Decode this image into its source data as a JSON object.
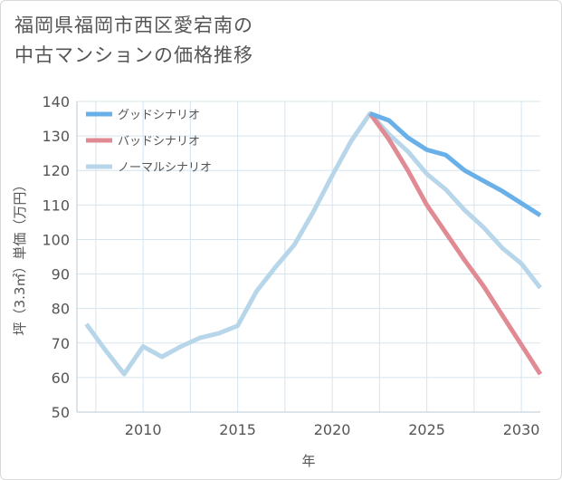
{
  "title_lines": [
    "福岡県福岡市西区愛宕南の",
    "中古マンションの価格推移"
  ],
  "chart_data": {
    "type": "line",
    "title": "福岡県福岡市西区愛宕南の中古マンションの価格推移",
    "xlabel": "年",
    "ylabel": "坪（3.3㎡）単価（万円）",
    "xlim": [
      2006.5,
      2031
    ],
    "ylim": [
      50,
      140
    ],
    "xticks": [
      2010,
      2015,
      2020,
      2025,
      2030
    ],
    "yticks": [
      50,
      60,
      70,
      80,
      90,
      100,
      110,
      120,
      130,
      140
    ],
    "grid": true,
    "legend_position": "top-left",
    "series": [
      {
        "name": "グッドシナリオ",
        "color": "#6ab0e8",
        "x": [
          2022,
          2023,
          2024,
          2025,
          2026,
          2027,
          2028,
          2029,
          2030,
          2031
        ],
        "y": [
          136.5,
          134.5,
          129.5,
          126,
          124.5,
          120,
          117,
          114,
          110.5,
          107
        ]
      },
      {
        "name": "バッドシナリオ",
        "color": "#e08a94",
        "x": [
          2022,
          2023,
          2024,
          2025,
          2026,
          2027,
          2028,
          2029,
          2030,
          2031
        ],
        "y": [
          136.5,
          129,
          120,
          110,
          102,
          94,
          86.5,
          78,
          69.5,
          61
        ]
      },
      {
        "name": "ノーマルシナリオ",
        "color": "#b8d6ea",
        "x": [
          2007,
          2008,
          2009,
          2010,
          2011,
          2012,
          2013,
          2014,
          2015,
          2016,
          2017,
          2018,
          2019,
          2020,
          2021,
          2022,
          2023,
          2024,
          2025,
          2026,
          2027,
          2028,
          2029,
          2030,
          2031
        ],
        "y": [
          75.5,
          68,
          61,
          69,
          66,
          69,
          71.5,
          72.8,
          75,
          85,
          92,
          98.5,
          108,
          118.5,
          128.5,
          136.5,
          130.5,
          125.5,
          119,
          114.5,
          108.5,
          103.5,
          97.5,
          93,
          86
        ]
      }
    ]
  }
}
